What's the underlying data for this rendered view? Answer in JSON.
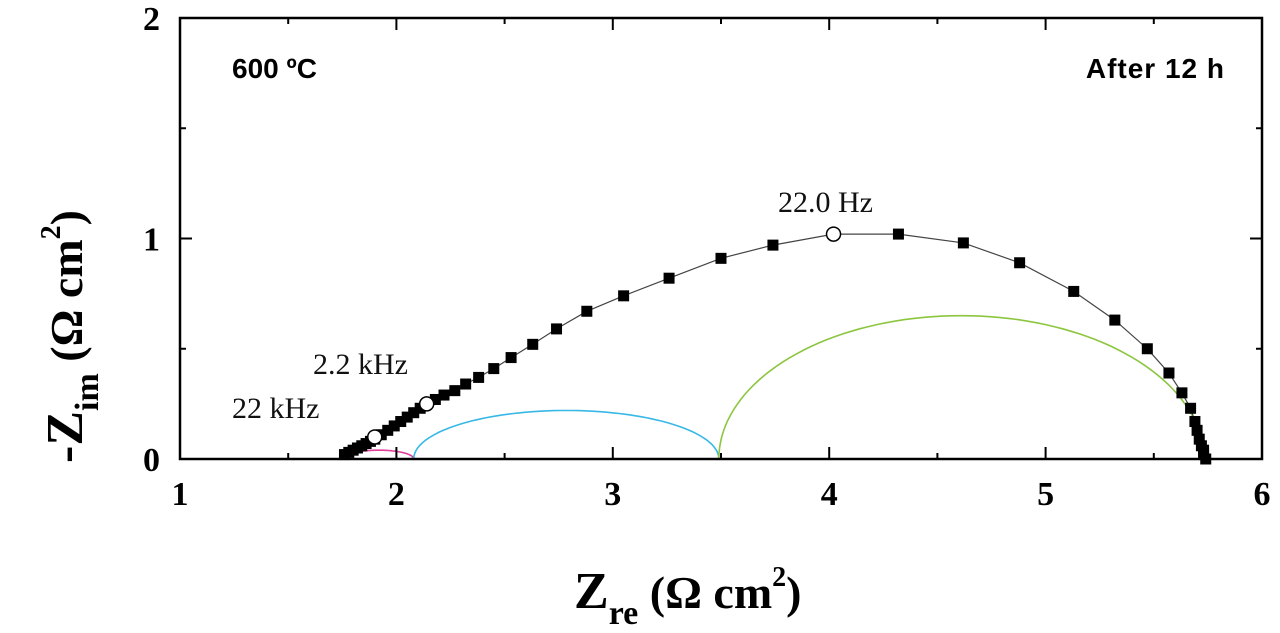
{
  "chart_data": {
    "type": "scatter",
    "xlim": [
      1,
      6
    ],
    "ylim": [
      0,
      2
    ],
    "x_ticks": [
      "1",
      "2",
      "3",
      "4",
      "5",
      "6"
    ],
    "y_ticks": [
      "0",
      "1",
      "2"
    ],
    "xlabel": {
      "main": "Z",
      "sub": "re",
      "unit_open": " (Ω cm",
      "unit_sup": "2",
      "unit_close": ")"
    },
    "ylabel": {
      "main": "-Z",
      "sub": "im",
      "unit_open": " (Ω cm",
      "unit_sup": "2",
      "unit_close": ")"
    },
    "annotations": {
      "temperature": "600 ºC",
      "time": "After 12 h",
      "f1": "22 kHz",
      "f2": "2.2 kHz",
      "f3": "22.0 Hz"
    },
    "series": [
      {
        "marker": "filled-square",
        "color": "#000000",
        "x": [
          1.76,
          1.78,
          1.8,
          1.82,
          1.84,
          1.86,
          1.88,
          1.9,
          1.93,
          1.96,
          1.99,
          2.02,
          2.05,
          2.08,
          2.11,
          2.18,
          2.22,
          2.27,
          2.32,
          2.38,
          2.45,
          2.53,
          2.63,
          2.74,
          2.88,
          3.05,
          3.26,
          3.5,
          3.74,
          4.32,
          4.62,
          4.88,
          5.13,
          5.32,
          5.47,
          5.57,
          5.63,
          5.67,
          5.69,
          5.7,
          5.71,
          5.72,
          5.73,
          5.73,
          5.74
        ],
        "y": [
          0.02,
          0.03,
          0.04,
          0.05,
          0.06,
          0.07,
          0.08,
          0.09,
          0.11,
          0.13,
          0.15,
          0.17,
          0.19,
          0.21,
          0.23,
          0.27,
          0.29,
          0.31,
          0.34,
          0.37,
          0.41,
          0.46,
          0.52,
          0.59,
          0.67,
          0.74,
          0.82,
          0.91,
          0.97,
          1.02,
          0.98,
          0.89,
          0.76,
          0.63,
          0.5,
          0.39,
          0.3,
          0.23,
          0.17,
          0.13,
          0.09,
          0.06,
          0.04,
          0.02,
          0.0
        ]
      },
      {
        "marker": "open-circle",
        "color": "#000000",
        "x": [
          1.9,
          2.14,
          4.02
        ],
        "y": [
          0.1,
          0.25,
          1.02
        ]
      }
    ],
    "fit_arcs": [
      {
        "color": "#e0409a",
        "x_start": 1.76,
        "x_end": 2.08,
        "peak": 0.04
      },
      {
        "color": "#38b8e6",
        "x_start": 2.08,
        "x_end": 3.49,
        "peak": 0.22
      },
      {
        "color": "#8cc63f",
        "x_start": 3.49,
        "x_end": 5.73,
        "peak": 0.65
      }
    ]
  }
}
